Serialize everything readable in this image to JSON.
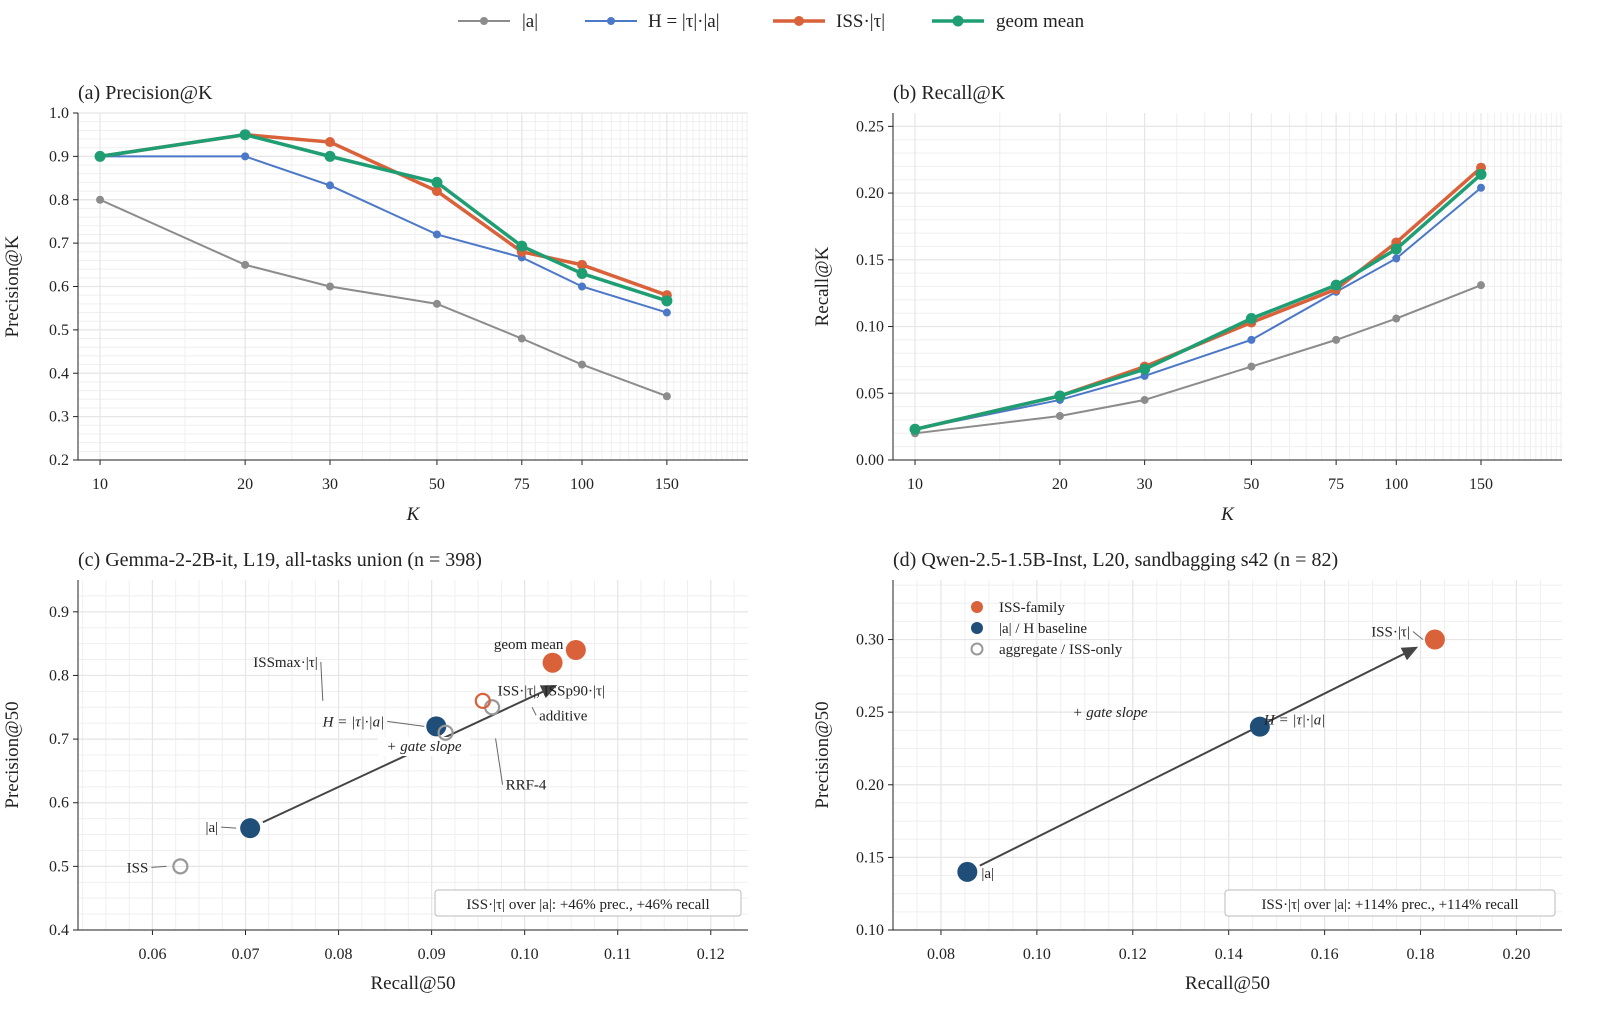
{
  "legend": {
    "items": [
      {
        "label": "|a|",
        "color": "#8c8c8c"
      },
      {
        "label": "H = |τ|·|a|",
        "color": "#4c78c8"
      },
      {
        "label": "ISS·|τ|",
        "color": "#d9623b"
      },
      {
        "label": "geom mean",
        "color": "#1f9e74"
      }
    ]
  },
  "chart_data": [
    {
      "type": "line",
      "title": "(a) Precision@K",
      "xlabel": "K",
      "ylabel": "Precision@K",
      "xscale": "log",
      "x": [
        10,
        20,
        30,
        50,
        75,
        100,
        150
      ],
      "x_tick_labels": [
        "10",
        "20",
        "30",
        "50",
        "75",
        "100",
        "150"
      ],
      "ylim": [
        0.2,
        1.0
      ],
      "y_ticks": [
        "0.2",
        "0.3",
        "0.4",
        "0.5",
        "0.6",
        "0.7",
        "0.8",
        "0.9",
        "1.0"
      ],
      "grid": true,
      "series": [
        {
          "name": "|a|",
          "values": [
            0.8,
            0.65,
            0.6,
            0.56,
            0.48,
            0.42,
            0.347
          ]
        },
        {
          "name": "H = |τ|·|a|",
          "values": [
            0.9,
            0.9,
            0.833,
            0.72,
            0.667,
            0.6,
            0.54
          ]
        },
        {
          "name": "ISS·|τ|",
          "values": [
            0.9,
            0.95,
            0.933,
            0.82,
            0.68,
            0.65,
            0.58
          ]
        },
        {
          "name": "geom mean",
          "values": [
            0.9,
            0.95,
            0.9,
            0.84,
            0.693,
            0.63,
            0.567
          ]
        }
      ]
    },
    {
      "type": "line",
      "title": "(b) Recall@K",
      "xlabel": "K",
      "ylabel": "Recall@K",
      "xscale": "log",
      "x": [
        10,
        20,
        30,
        50,
        75,
        100,
        150
      ],
      "x_tick_labels": [
        "10",
        "20",
        "30",
        "50",
        "75",
        "100",
        "150"
      ],
      "ylim": [
        0,
        0.26
      ],
      "y_ticks": [
        "0.00",
        "0.05",
        "0.10",
        "0.15",
        "0.20",
        "0.25"
      ],
      "grid": true,
      "series": [
        {
          "name": "|a|",
          "values": [
            0.02,
            0.033,
            0.045,
            0.07,
            0.09,
            0.106,
            0.131
          ]
        },
        {
          "name": "H = |τ|·|a|",
          "values": [
            0.023,
            0.045,
            0.063,
            0.09,
            0.126,
            0.151,
            0.204
          ]
        },
        {
          "name": "ISS·|τ|",
          "values": [
            0.023,
            0.048,
            0.07,
            0.103,
            0.128,
            0.163,
            0.219
          ]
        },
        {
          "name": "geom mean",
          "values": [
            0.023,
            0.048,
            0.068,
            0.106,
            0.131,
            0.158,
            0.214
          ]
        }
      ]
    },
    {
      "type": "scatter",
      "title": "(c) Gemma-2-2B-it, L19, all-tasks union (n = 398)",
      "xlabel": "Recall@50",
      "ylabel": "Precision@50",
      "xlim": [
        0.052,
        0.124
      ],
      "ylim": [
        0.4,
        0.95
      ],
      "x_ticks": [
        "0.06",
        "0.07",
        "0.08",
        "0.09",
        "0.10",
        "0.11",
        "0.12"
      ],
      "y_ticks": [
        "0.4",
        "0.5",
        "0.6",
        "0.7",
        "0.8",
        "0.9"
      ],
      "grid": true,
      "points": [
        {
          "label": "ISS",
          "x": 0.063,
          "y": 0.5,
          "group": "aggregate"
        },
        {
          "label": "|a|",
          "x": 0.0705,
          "y": 0.56,
          "group": "baseline"
        },
        {
          "label": "H = |τ|·|a|",
          "x": 0.0905,
          "y": 0.72,
          "group": "baseline"
        },
        {
          "label": "RRF-4",
          "x": 0.0915,
          "y": 0.71,
          "group": "aggregate"
        },
        {
          "label": "additive",
          "x": 0.0965,
          "y": 0.75,
          "group": "aggregate"
        },
        {
          "label": "ISSmax·|τ|",
          "x": 0.0955,
          "y": 0.76,
          "group": "iss-hollow"
        },
        {
          "label": "ISS·|τ|, ISSp90·|τ|",
          "x": 0.103,
          "y": 0.82,
          "group": "iss"
        },
        {
          "label": "geom mean",
          "x": 0.1055,
          "y": 0.84,
          "group": "iss"
        }
      ],
      "arrow": {
        "from": [
          0.0705,
          0.56
        ],
        "to": [
          0.1035,
          0.785
        ],
        "label": "+ gate slope"
      },
      "annotation": "ISS·|τ| over |a|: +46% prec., +46% recall"
    },
    {
      "type": "scatter",
      "title": "(d) Qwen-2.5-1.5B-Inst, L20, sandbagging s42 (n = 82)",
      "xlabel": "Recall@50",
      "ylabel": "Precision@50",
      "xlim": [
        0.07,
        0.2095
      ],
      "ylim": [
        0.1,
        0.341
      ],
      "x_ticks": [
        "0.08",
        "0.10",
        "0.12",
        "0.14",
        "0.16",
        "0.18",
        "0.20"
      ],
      "y_ticks": [
        "0.10",
        "0.15",
        "0.20",
        "0.25",
        "0.30"
      ],
      "grid": true,
      "points": [
        {
          "label": "|a|",
          "x": 0.0855,
          "y": 0.14,
          "group": "baseline"
        },
        {
          "label": "H = |τ|·|a|",
          "x": 0.1465,
          "y": 0.24,
          "group": "baseline"
        },
        {
          "label": "ISS·|τ|",
          "x": 0.183,
          "y": 0.3,
          "group": "iss"
        }
      ],
      "arrow": {
        "from": [
          0.0855,
          0.14
        ],
        "to": [
          0.1795,
          0.295
        ],
        "label": "+ gate slope"
      },
      "legend": [
        "ISS-family",
        "|a| / H baseline",
        "aggregate / ISS-only"
      ],
      "legend_placement": "top-left",
      "annotation": "ISS·|τ| over |a|: +114% prec., +114% recall"
    }
  ],
  "colors": {
    "iss": "#d9623b",
    "baseline": "#1f4e79",
    "aggregate": "#999999",
    "grid": "#e6e6e6",
    "arrow": "#444444"
  }
}
